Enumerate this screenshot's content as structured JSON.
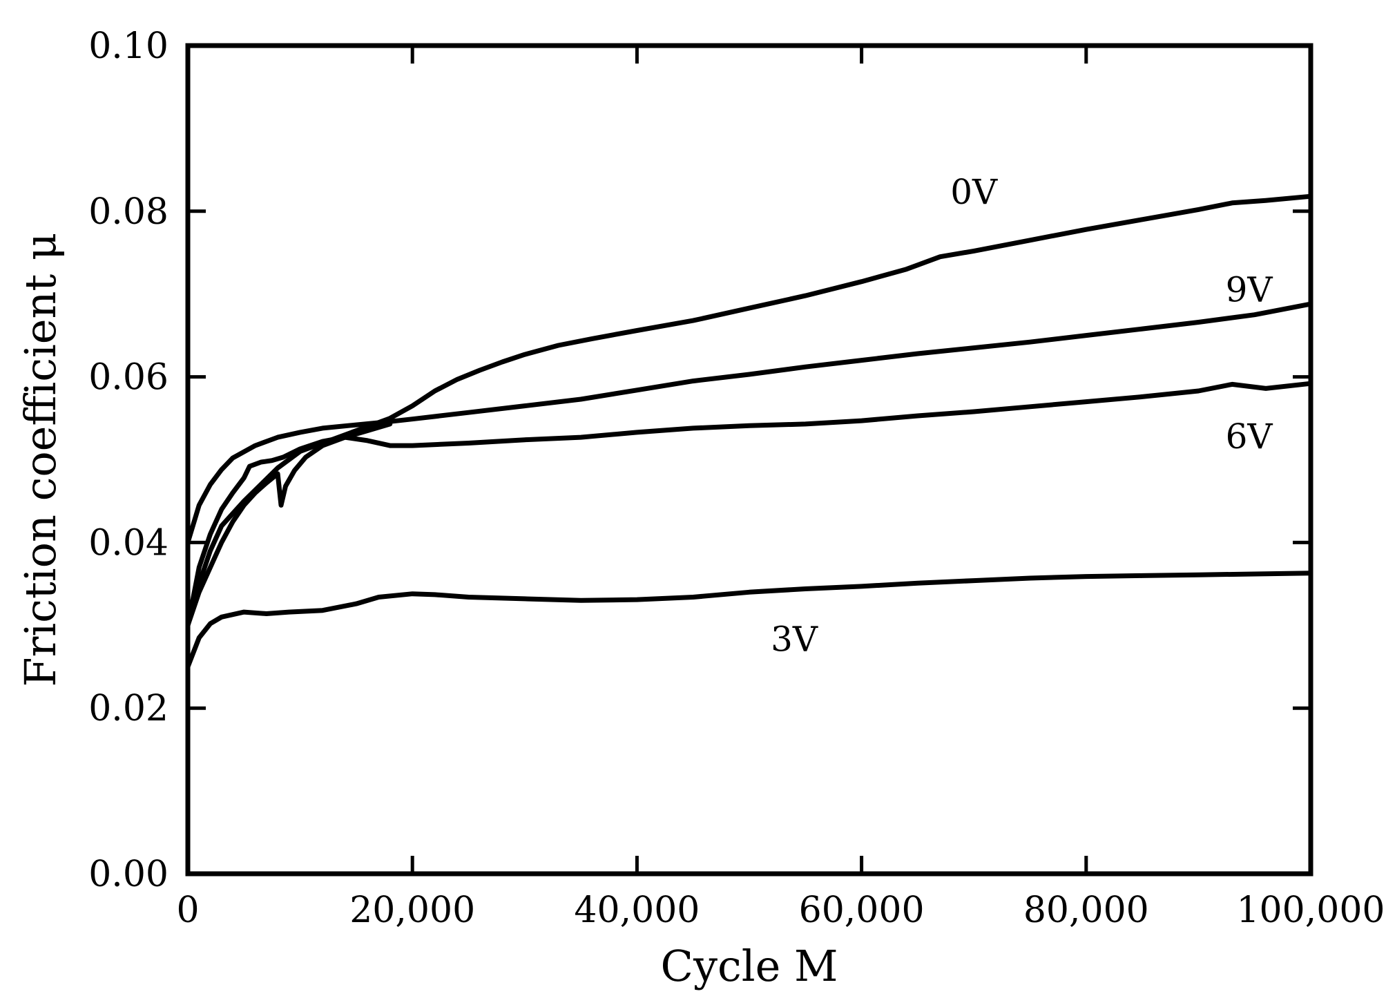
{
  "chart_data": {
    "type": "line",
    "title": "",
    "xlabel": "Cycle M",
    "ylabel": "Friction coefficient μ",
    "xlim": [
      0,
      100000
    ],
    "ylim": [
      0,
      0.1
    ],
    "xticks": [
      0,
      20000,
      40000,
      60000,
      80000,
      100000
    ],
    "xtick_labels": [
      "0",
      "20,000",
      "40,000",
      "60,000",
      "80,000",
      "100,000"
    ],
    "yticks": [
      0,
      0.02,
      0.04,
      0.06,
      0.08,
      0.1
    ],
    "ytick_labels": [
      "0.00",
      "0.02",
      "0.04",
      "0.06",
      "0.08",
      "0.10"
    ],
    "grid": false,
    "series": [
      {
        "name": "0V",
        "label_at": [
          70000,
          0.0823
        ],
        "x": [
          0,
          1000,
          2000,
          3000,
          5000,
          8000,
          10000,
          12000,
          15000,
          18000,
          20000,
          22000,
          24000,
          26000,
          28000,
          30000,
          33000,
          36000,
          40000,
          45000,
          50000,
          55000,
          60000,
          64000,
          67000,
          70000,
          75000,
          80000,
          85000,
          90000,
          93000,
          96000,
          100000
        ],
        "y": [
          0.03,
          0.035,
          0.039,
          0.042,
          0.045,
          0.049,
          0.051,
          0.052,
          0.0535,
          0.055,
          0.0565,
          0.0583,
          0.0597,
          0.0608,
          0.0618,
          0.0627,
          0.0638,
          0.0646,
          0.0656,
          0.0668,
          0.0683,
          0.0698,
          0.0715,
          0.073,
          0.0745,
          0.0752,
          0.0765,
          0.0778,
          0.079,
          0.0802,
          0.081,
          0.0813,
          0.0818
        ]
      },
      {
        "name": "9V",
        "label_at": [
          94500,
          0.0705
        ],
        "x": [
          0,
          1000,
          2000,
          3000,
          4000,
          6000,
          8000,
          10000,
          12000,
          15000,
          18000,
          20000,
          25000,
          30000,
          35000,
          40000,
          45000,
          50000,
          55000,
          60000,
          65000,
          70000,
          75000,
          80000,
          85000,
          90000,
          95000,
          100000
        ],
        "y": [
          0.04,
          0.0445,
          0.047,
          0.0488,
          0.0502,
          0.0517,
          0.0527,
          0.0533,
          0.0538,
          0.0542,
          0.0546,
          0.0549,
          0.0557,
          0.0565,
          0.0573,
          0.0584,
          0.0595,
          0.0603,
          0.0612,
          0.062,
          0.0628,
          0.0635,
          0.0642,
          0.065,
          0.0658,
          0.0666,
          0.0675,
          0.0688
        ]
      },
      {
        "name": "6V",
        "label_at": [
          94500,
          0.0528
        ],
        "x": [
          0,
          1000,
          2000,
          3000,
          4000,
          5000,
          5500,
          6500,
          7500,
          8500,
          10000,
          12000,
          14000,
          16000,
          18000,
          20000,
          25000,
          30000,
          35000,
          40000,
          45000,
          50000,
          55000,
          60000,
          65000,
          70000,
          75000,
          80000,
          85000,
          90000,
          93000,
          96000,
          100000
        ],
        "y": [
          0.03,
          0.037,
          0.041,
          0.044,
          0.046,
          0.0478,
          0.0492,
          0.0497,
          0.0499,
          0.0503,
          0.0513,
          0.0522,
          0.0527,
          0.0523,
          0.0517,
          0.0517,
          0.052,
          0.0524,
          0.0527,
          0.0533,
          0.0538,
          0.0541,
          0.0543,
          0.0547,
          0.0553,
          0.0558,
          0.0564,
          0.057,
          0.0576,
          0.0583,
          0.0591,
          0.0586,
          0.0592
        ]
      },
      {
        "name": "5th curve (unlabeled)",
        "x": [
          0,
          1000,
          2000,
          3000,
          4000,
          5000,
          6000,
          7000,
          8000,
          8300,
          8700,
          9500,
          10500,
          12000,
          14000,
          16000,
          18000
        ],
        "y": [
          0.03,
          0.034,
          0.037,
          0.04,
          0.0425,
          0.0445,
          0.046,
          0.0472,
          0.0483,
          0.0445,
          0.0468,
          0.0487,
          0.0503,
          0.0517,
          0.0527,
          0.0535,
          0.0543
        ]
      },
      {
        "name": "3V",
        "label_at": [
          54000,
          0.0283
        ],
        "x": [
          0,
          1000,
          2000,
          3000,
          5000,
          7000,
          9000,
          12000,
          15000,
          17000,
          20000,
          22000,
          25000,
          30000,
          35000,
          40000,
          45000,
          50000,
          55000,
          60000,
          65000,
          70000,
          75000,
          80000,
          85000,
          90000,
          95000,
          100000
        ],
        "y": [
          0.025,
          0.0285,
          0.0302,
          0.031,
          0.0316,
          0.0314,
          0.0316,
          0.0318,
          0.0326,
          0.0334,
          0.0338,
          0.0337,
          0.0334,
          0.0332,
          0.033,
          0.0331,
          0.0334,
          0.034,
          0.0344,
          0.0347,
          0.0351,
          0.0354,
          0.0357,
          0.0359,
          0.036,
          0.0361,
          0.0362,
          0.0363
        ]
      }
    ]
  }
}
